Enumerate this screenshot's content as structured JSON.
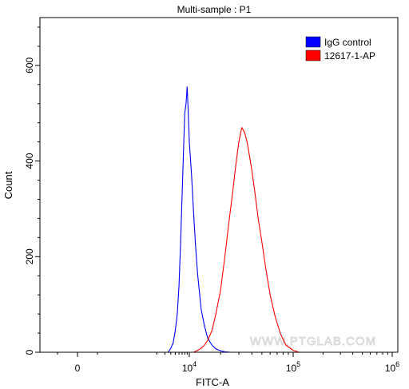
{
  "chart_data": {
    "type": "line",
    "title": "Multi-sample : P1",
    "xlabel": "FITC-A",
    "ylabel": "Count",
    "xscale": "biexponential",
    "ylim": [
      0,
      700
    ],
    "grid": false,
    "legend_position": "top-right",
    "x_ticks": [
      {
        "value": 0,
        "label": "0"
      },
      {
        "value": 10000,
        "base": "10",
        "exp": "4"
      },
      {
        "value": 100000,
        "base": "10",
        "exp": "5"
      },
      {
        "value": 1000000,
        "base": "10",
        "exp": "6"
      }
    ],
    "y_ticks": [
      0,
      200,
      400,
      600
    ],
    "watermark": "WWW.PTGLAB.COM",
    "series": [
      {
        "name": "IgG control",
        "color": "#0000ff",
        "x": [
          3500,
          4000,
          4500,
          5000,
          5500,
          6000,
          6500,
          7000,
          7500,
          8000,
          8500,
          9000,
          9500,
          10000,
          10500,
          11000,
          11500,
          12000,
          13000,
          14000,
          15000,
          16500,
          18000,
          20000,
          22000,
          25000
        ],
        "y": [
          0,
          8,
          20,
          45,
          80,
          140,
          230,
          330,
          420,
          500,
          520,
          555,
          500,
          440,
          370,
          290,
          220,
          165,
          90,
          55,
          30,
          15,
          7,
          3,
          1,
          0
        ]
      },
      {
        "name": "12617-1-AP",
        "color": "#ff0000",
        "x": [
          11000,
          12000,
          13000,
          14000,
          15000,
          16500,
          18000,
          20000,
          22000,
          24000,
          26000,
          28000,
          30000,
          32000,
          34000,
          36000,
          38000,
          40000,
          43000,
          46000,
          50000,
          55000,
          60000,
          67000,
          75000,
          85000,
          100000,
          115000
        ],
        "y": [
          0,
          4,
          8,
          15,
          25,
          45,
          80,
          130,
          200,
          270,
          330,
          390,
          440,
          470,
          460,
          440,
          410,
          380,
          330,
          280,
          230,
          170,
          120,
          75,
          40,
          15,
          4,
          0
        ]
      }
    ]
  }
}
